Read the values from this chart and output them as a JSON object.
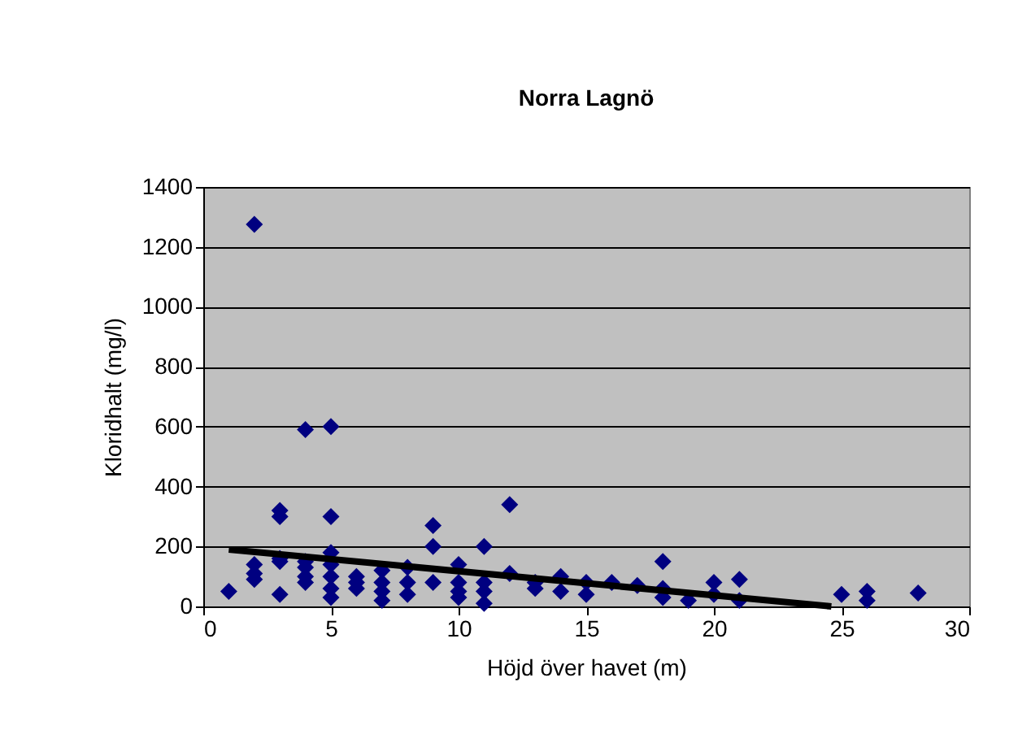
{
  "chart_data": {
    "type": "scatter",
    "title": "Norra Lagnö",
    "xlabel": "Höjd över havet (m)",
    "ylabel": "Kloridhalt (mg/l)",
    "xlim": [
      0,
      30
    ],
    "xticks": [
      0,
      5,
      10,
      15,
      20,
      25,
      30
    ],
    "ylim": [
      0,
      1400
    ],
    "yticks": [
      0,
      200,
      400,
      600,
      800,
      1000,
      1200,
      1400
    ],
    "grid": "y",
    "marker": "diamond",
    "series": [
      {
        "color": "#000080",
        "x": [
          1,
          2,
          2,
          2,
          2,
          3,
          3,
          3,
          3,
          3,
          4,
          4,
          4,
          4,
          4,
          5,
          5,
          5,
          5,
          5,
          5,
          5,
          6,
          6,
          6,
          7,
          7,
          7,
          7,
          8,
          8,
          8,
          9,
          9,
          9,
          10,
          10,
          10,
          10,
          11,
          11,
          11,
          11,
          12,
          12,
          13,
          13,
          14,
          14,
          15,
          15,
          16,
          17,
          18,
          18,
          18,
          19,
          20,
          20,
          21,
          21,
          25,
          26,
          26,
          28
        ],
        "values": [
          50,
          1275,
          140,
          110,
          90,
          320,
          300,
          160,
          40,
          150,
          590,
          150,
          130,
          100,
          80,
          600,
          300,
          180,
          140,
          100,
          60,
          30,
          100,
          80,
          60,
          120,
          80,
          50,
          20,
          130,
          80,
          40,
          270,
          200,
          80,
          140,
          80,
          50,
          30,
          200,
          80,
          50,
          10,
          340,
          110,
          80,
          60,
          100,
          50,
          80,
          40,
          80,
          70,
          150,
          60,
          30,
          20,
          80,
          40,
          90,
          20,
          40,
          50,
          20,
          45
        ]
      },
      {
        "type": "line",
        "color": "#000000",
        "marker": "none",
        "x": [
          1,
          24.6
        ],
        "values": [
          190,
          0
        ]
      }
    ]
  }
}
